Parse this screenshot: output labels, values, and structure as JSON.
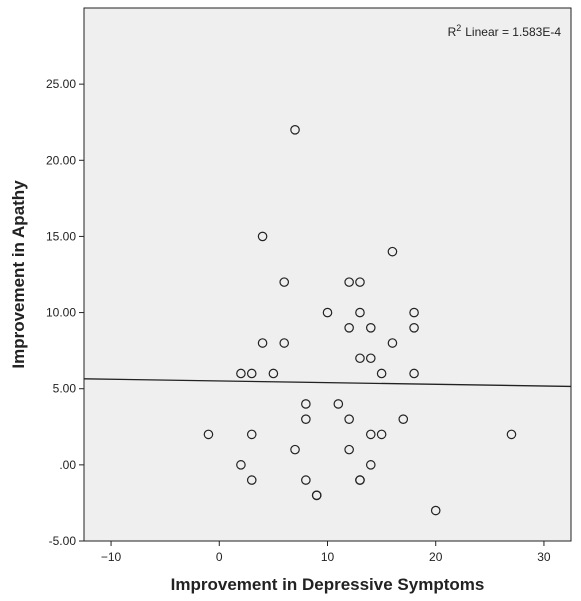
{
  "chart_data": {
    "type": "scatter",
    "title": "",
    "xlabel": "Improvement in Depressive Symptoms",
    "ylabel": "Improvement in Apathy",
    "xlim": [
      -12.5,
      32.5
    ],
    "ylim": [
      -5,
      30
    ],
    "x_ticks": [
      -10,
      0,
      10,
      20,
      30
    ],
    "x_tick_labels": [
      "−10",
      "0",
      "10",
      "20",
      "30"
    ],
    "y_ticks": [
      -5,
      0,
      5,
      10,
      15,
      20,
      25
    ],
    "y_tick_labels": [
      "-5.00",
      ".00",
      "5.00",
      "10.00",
      "15.00",
      "20.00",
      "25.00"
    ],
    "grid": false,
    "annotation": {
      "r2_label": "R",
      "r2_sup": "2",
      "r2_text": "Linear = 1.583E-4"
    },
    "fit_line": {
      "x": [
        -12.5,
        32.5
      ],
      "y": [
        5.65,
        5.15
      ]
    },
    "colors": {
      "plot_bg": "#efefef",
      "marker_stroke": "#222222",
      "line": "#222222"
    },
    "points": [
      {
        "x": 7,
        "y": 22
      },
      {
        "x": 4,
        "y": 15
      },
      {
        "x": 16,
        "y": 14
      },
      {
        "x": 6,
        "y": 12
      },
      {
        "x": 12,
        "y": 12
      },
      {
        "x": 13,
        "y": 12
      },
      {
        "x": 10,
        "y": 10
      },
      {
        "x": 13,
        "y": 10
      },
      {
        "x": 18,
        "y": 10
      },
      {
        "x": 12,
        "y": 9
      },
      {
        "x": 14,
        "y": 9
      },
      {
        "x": 18,
        "y": 9
      },
      {
        "x": 4,
        "y": 8
      },
      {
        "x": 6,
        "y": 8
      },
      {
        "x": 16,
        "y": 8
      },
      {
        "x": 13,
        "y": 7
      },
      {
        "x": 14,
        "y": 7
      },
      {
        "x": 2,
        "y": 6
      },
      {
        "x": 3,
        "y": 6
      },
      {
        "x": 5,
        "y": 6
      },
      {
        "x": 15,
        "y": 6
      },
      {
        "x": 18,
        "y": 6
      },
      {
        "x": 8,
        "y": 4
      },
      {
        "x": 11,
        "y": 4
      },
      {
        "x": 8,
        "y": 3
      },
      {
        "x": 12,
        "y": 3
      },
      {
        "x": 17,
        "y": 3
      },
      {
        "x": -1,
        "y": 2
      },
      {
        "x": 3,
        "y": 2
      },
      {
        "x": 14,
        "y": 2
      },
      {
        "x": 15,
        "y": 2
      },
      {
        "x": 27,
        "y": 2
      },
      {
        "x": 7,
        "y": 1
      },
      {
        "x": 12,
        "y": 1
      },
      {
        "x": 2,
        "y": 0
      },
      {
        "x": 14,
        "y": 0
      },
      {
        "x": 3,
        "y": -1
      },
      {
        "x": 8,
        "y": -1
      },
      {
        "x": 13,
        "y": -1
      },
      {
        "x": 13,
        "y": -1
      },
      {
        "x": 9,
        "y": -2
      },
      {
        "x": 9,
        "y": -2
      },
      {
        "x": 20,
        "y": -3
      }
    ]
  }
}
